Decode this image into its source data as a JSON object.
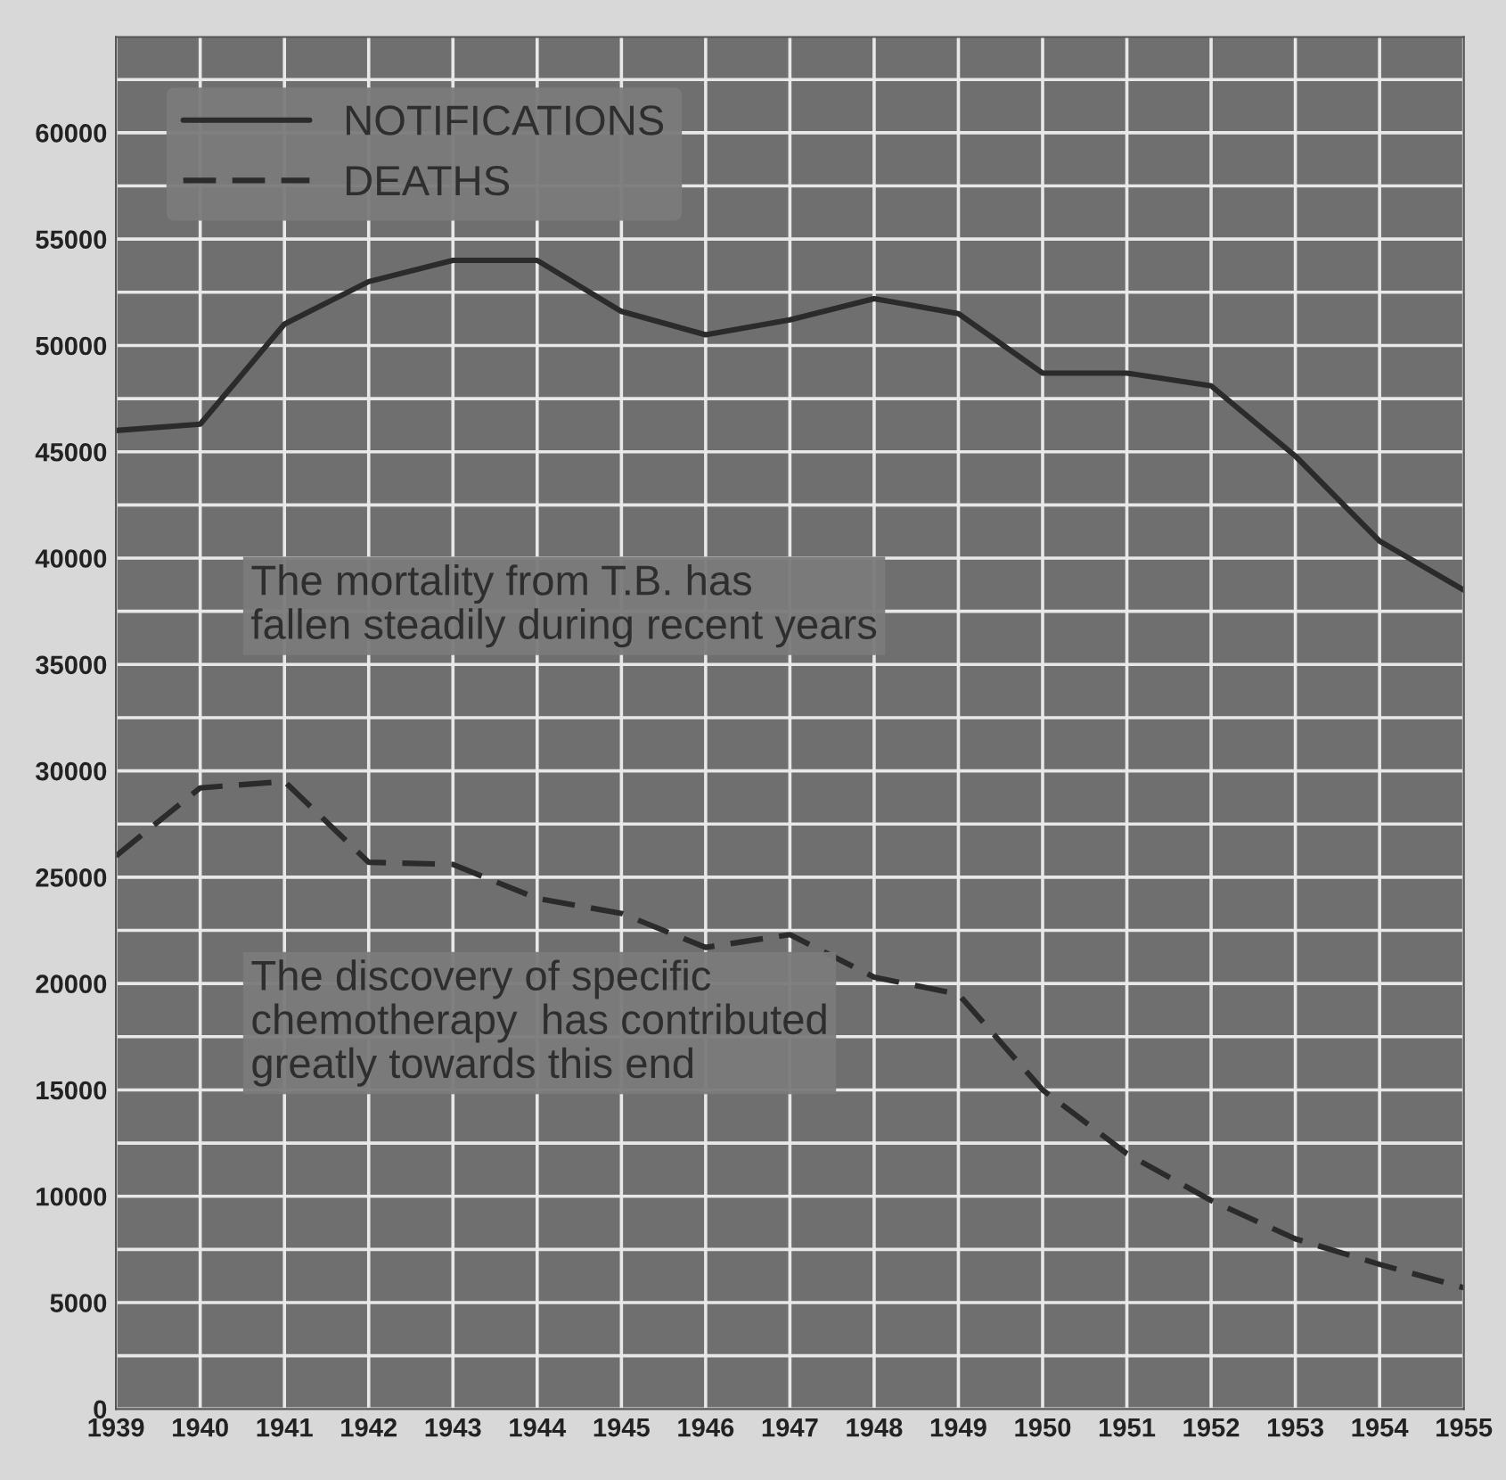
{
  "chart_data": {
    "type": "line",
    "x": [
      1939,
      1940,
      1941,
      1942,
      1943,
      1944,
      1945,
      1946,
      1947,
      1948,
      1949,
      1950,
      1951,
      1952,
      1953,
      1954,
      1955
    ],
    "series": [
      {
        "name": "NOTIFICATIONS",
        "color": "#2b2b2b",
        "line_style": "solid",
        "values": [
          46000,
          46300,
          51000,
          53000,
          54000,
          54000,
          51600,
          50500,
          51200,
          52200,
          51500,
          48700,
          48700,
          48100,
          44800,
          40800,
          38500
        ]
      },
      {
        "name": "DEATHS",
        "color": "#2b2b2b",
        "line_style": "dashed",
        "values": [
          26000,
          29200,
          29500,
          25700,
          25600,
          24000,
          23300,
          21700,
          22300,
          20300,
          19500,
          15000,
          12000,
          9800,
          8000,
          6800,
          5700
        ]
      }
    ],
    "xlim": [
      1939,
      1955
    ],
    "xticks": [
      1939,
      1940,
      1941,
      1942,
      1943,
      1944,
      1945,
      1946,
      1947,
      1948,
      1949,
      1950,
      1951,
      1952,
      1953,
      1954,
      1955
    ],
    "ylim": [
      0,
      64500
    ],
    "yticks": [
      0,
      {
        "value": 2500,
        "label": null
      },
      5000,
      {
        "value": 7500,
        "label": null
      },
      10000,
      {
        "value": 12500,
        "label": null
      },
      15000,
      {
        "value": 17500,
        "label": null
      },
      20000,
      {
        "value": 22500,
        "label": null
      },
      25000,
      {
        "value": 27500,
        "label": null
      },
      30000,
      {
        "value": 32500,
        "label": null
      },
      35000,
      {
        "value": 37500,
        "label": null
      },
      40000,
      {
        "value": 42500,
        "label": null
      },
      45000,
      {
        "value": 47500,
        "label": null
      },
      50000,
      {
        "value": 52500,
        "label": null
      },
      55000,
      {
        "value": 57500,
        "label": null
      },
      60000,
      {
        "value": 62500,
        "label": null
      }
    ],
    "grid": true,
    "legend": "top left",
    "annotations": [
      "The mortality from T.B. has\nfallen steadily during recent years",
      "The discovery of specific\nchemotherapy  has contributed\ngreatly towards this end"
    ]
  }
}
